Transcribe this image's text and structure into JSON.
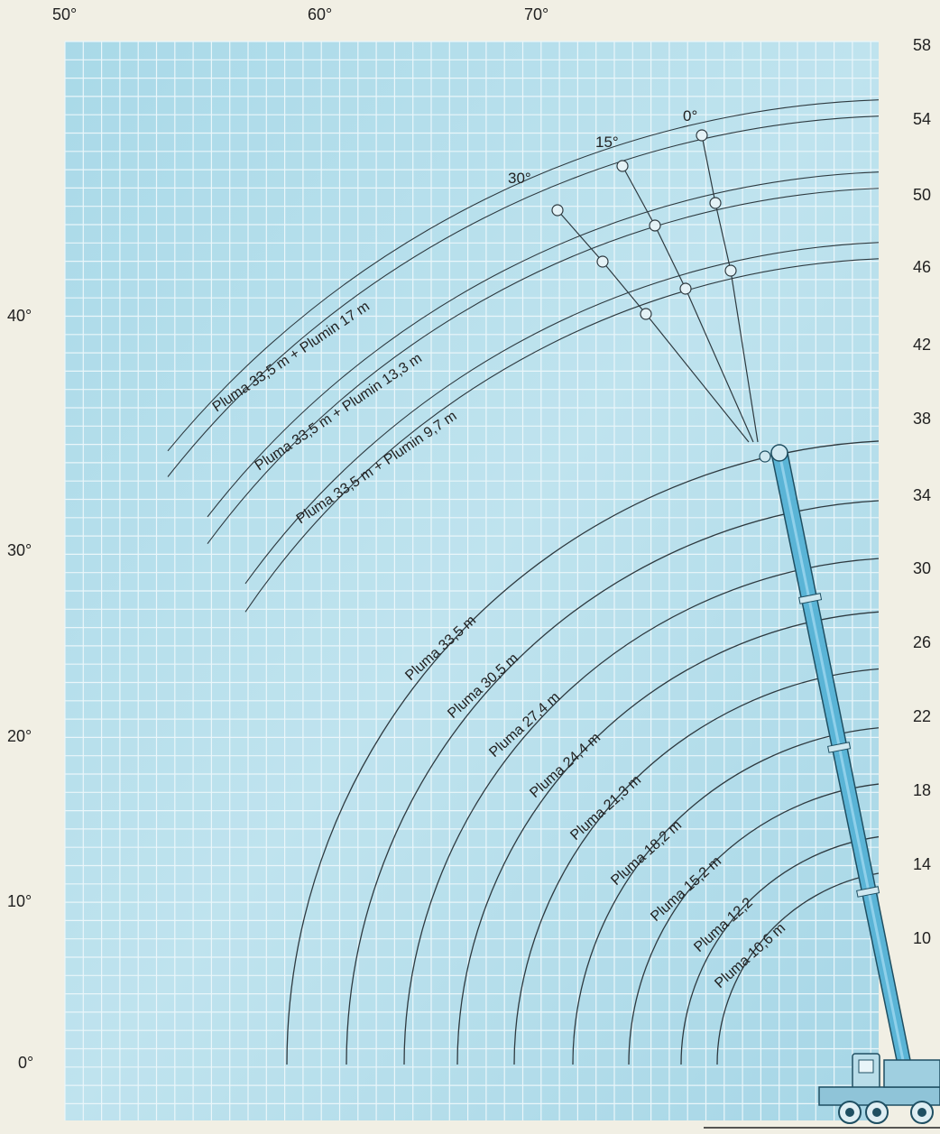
{
  "diagram": {
    "colors": {
      "page": "#f1efe4",
      "grid_fill": "#9fd3e3",
      "grid_fill_light": "#c6e8f0",
      "grid_line": "#e6f4f8",
      "curve": "#2e3a40",
      "boom": "#5ab4d6",
      "boom_edge": "#1f4f62",
      "text": "#222222"
    },
    "top_angle_labels": [
      "50°",
      "60°",
      "70°"
    ],
    "left_angle_labels": [
      "40°",
      "30°",
      "20°",
      "10°",
      "0°"
    ],
    "right_height_labels": [
      "58",
      "54",
      "50",
      "46",
      "42",
      "38",
      "34",
      "30",
      "26",
      "22",
      "18",
      "14",
      "10"
    ],
    "jib_offset_labels": [
      "0°",
      "15°",
      "30°"
    ],
    "jib_labels": [
      "Pluma 33,5 m + Plumin 17 m",
      "Pluma 33,5 m + Plumin 13,3 m",
      "Pluma 33,5 m + Plumin 9,7 m"
    ],
    "boom_labels": [
      "Pluma 33,5 m",
      "Pluma 30,5 m",
      "Pluma 27,4 m",
      "Pluma 24,4 m",
      "Pluma 21,3 m",
      "Pluma 18,2 m",
      "Pluma 15,2 m",
      "Pluma 12,2",
      "Pluma 10,6 m"
    ]
  }
}
